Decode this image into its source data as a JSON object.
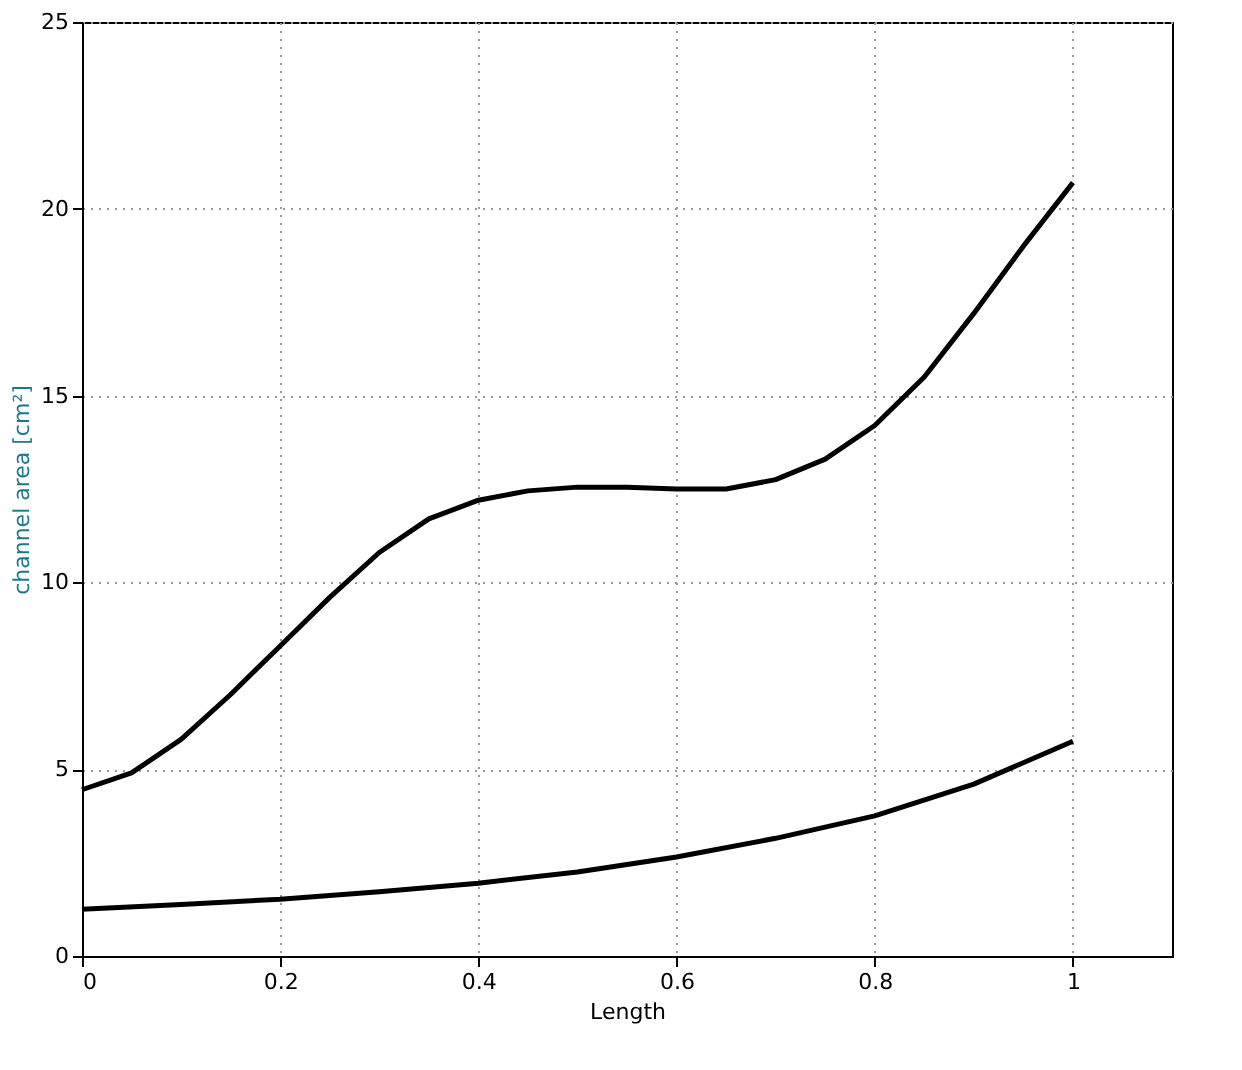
{
  "chart_data": {
    "type": "line",
    "xlabel": "Length",
    "ylabel": "channel area [cm²]",
    "xlim": [
      0,
      1.1
    ],
    "ylim": [
      0,
      25
    ],
    "xticks": [
      0,
      0.2,
      0.4,
      0.6,
      0.8,
      1
    ],
    "yticks": [
      0,
      5,
      10,
      15,
      20,
      25
    ],
    "grid": true,
    "legend": false,
    "marker": "none",
    "line_style": "solid",
    "series": [
      {
        "color": "#000000",
        "x": [
          0,
          0.05,
          0.1,
          0.15,
          0.2,
          0.25,
          0.3,
          0.35,
          0.4,
          0.45,
          0.5,
          0.55,
          0.6,
          0.65,
          0.7,
          0.75,
          0.8,
          0.85,
          0.9,
          0.95,
          1
        ],
        "values": [
          4.45,
          4.9,
          5.8,
          7.0,
          8.3,
          9.6,
          10.8,
          11.7,
          12.2,
          12.45,
          12.55,
          12.55,
          12.5,
          12.5,
          12.75,
          13.3,
          14.2,
          15.5,
          17.2,
          19.0,
          20.7
        ]
      },
      {
        "color": "#000000",
        "x": [
          0,
          0.1,
          0.2,
          0.3,
          0.4,
          0.5,
          0.6,
          0.7,
          0.8,
          0.9,
          1
        ],
        "values": [
          1.25,
          1.38,
          1.52,
          1.72,
          1.95,
          2.25,
          2.65,
          3.15,
          3.75,
          4.6,
          5.75
        ]
      }
    ]
  }
}
